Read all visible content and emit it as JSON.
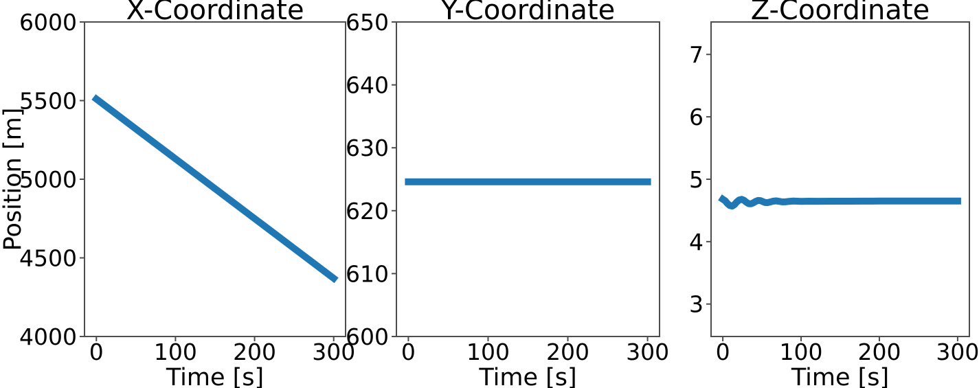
{
  "figure": {
    "background": "#ffffff",
    "text_color": "#000000",
    "spine_color": "#4d4d4d",
    "accent_color": "#1f77b4"
  },
  "chart_data": [
    {
      "id": "x-coordinate",
      "type": "line",
      "title": "X-Coordinate",
      "xlabel": "Time [s]",
      "ylabel": "Position [m]",
      "xlim": [
        -15,
        315
      ],
      "ylim": [
        4000,
        6000
      ],
      "xticks": [
        0,
        100,
        200,
        300
      ],
      "yticks": [
        4000,
        4500,
        5000,
        5500,
        6000
      ],
      "grid": false,
      "legend": null,
      "line_color": "#1f77b4",
      "line_width": 10,
      "x": [
        0,
        25,
        50,
        75,
        100,
        125,
        150,
        175,
        200,
        225,
        250,
        275,
        300
      ],
      "y": [
        5510,
        5415,
        5320,
        5225,
        5130,
        5035,
        4940,
        4845,
        4750,
        4655,
        4560,
        4465,
        4370
      ]
    },
    {
      "id": "y-coordinate",
      "type": "line",
      "title": "Y-Coordinate",
      "xlabel": "Time [s]",
      "ylabel": null,
      "xlim": [
        -15,
        315
      ],
      "ylim": [
        600,
        650
      ],
      "xticks": [
        0,
        100,
        200,
        300
      ],
      "yticks": [
        600,
        610,
        620,
        630,
        640,
        650
      ],
      "grid": false,
      "legend": null,
      "line_color": "#1f77b4",
      "line_width": 10,
      "x": [
        0,
        50,
        100,
        150,
        200,
        250,
        300
      ],
      "y": [
        624.6,
        624.6,
        624.6,
        624.6,
        624.6,
        624.6,
        624.6
      ]
    },
    {
      "id": "z-coordinate",
      "type": "line",
      "title": "Z-Coordinate",
      "xlabel": "Time [s]",
      "ylabel": null,
      "xlim": [
        -15,
        315
      ],
      "ylim": [
        2.48,
        7.52
      ],
      "xticks": [
        0,
        100,
        200,
        300
      ],
      "yticks": [
        3,
        4,
        5,
        6,
        7
      ],
      "grid": false,
      "legend": null,
      "line_color": "#1f77b4",
      "line_width": 10,
      "x": [
        0,
        3,
        6,
        9,
        12,
        15,
        18,
        21,
        24,
        27,
        30,
        33,
        36,
        39,
        42,
        45,
        48,
        51,
        54,
        57,
        60,
        64,
        68,
        72,
        76,
        80,
        85,
        90,
        100,
        110,
        120,
        140,
        160,
        180,
        200,
        225,
        250,
        275,
        300
      ],
      "y": [
        4.68,
        4.655,
        4.61,
        4.578,
        4.57,
        4.595,
        4.638,
        4.668,
        4.678,
        4.662,
        4.632,
        4.608,
        4.606,
        4.622,
        4.645,
        4.66,
        4.658,
        4.642,
        4.627,
        4.625,
        4.634,
        4.648,
        4.653,
        4.646,
        4.637,
        4.638,
        4.646,
        4.65,
        4.646,
        4.648,
        4.647,
        4.648,
        4.648,
        4.649,
        4.65,
        4.65,
        4.65,
        4.65,
        4.65
      ]
    }
  ]
}
